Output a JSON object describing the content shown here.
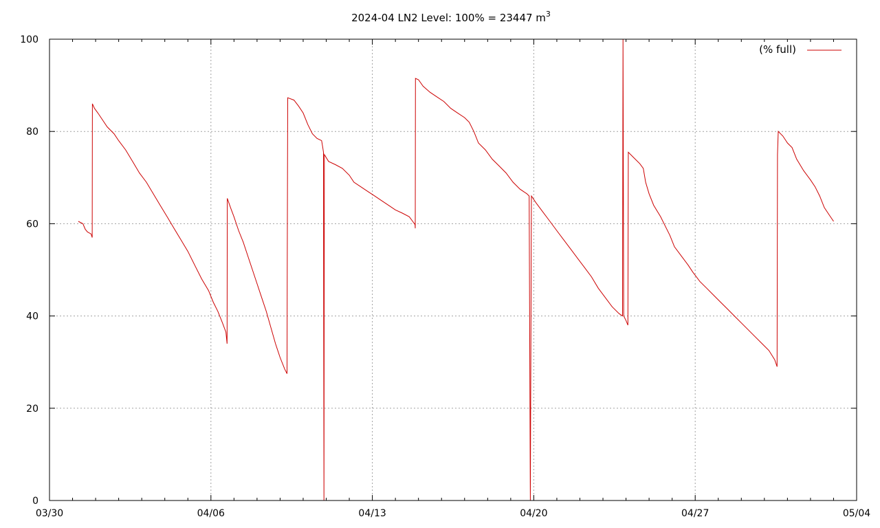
{
  "chart_data": {
    "type": "line",
    "title": "2024-04 LN2 Level: 100% = 23447 m",
    "title_superscript": "3",
    "xlabel": "",
    "ylabel": "",
    "x_unit": "day",
    "xlim": [
      0,
      35
    ],
    "ylim": [
      0,
      100
    ],
    "x_ticks": [
      {
        "value": 0,
        "label": "03/30"
      },
      {
        "value": 7,
        "label": "04/06"
      },
      {
        "value": 14,
        "label": "04/13"
      },
      {
        "value": 21,
        "label": "04/20"
      },
      {
        "value": 28,
        "label": "04/27"
      },
      {
        "value": 35,
        "label": "05/04"
      }
    ],
    "y_ticks": [
      {
        "value": 0,
        "label": "0"
      },
      {
        "value": 20,
        "label": "20"
      },
      {
        "value": 40,
        "label": "40"
      },
      {
        "value": 60,
        "label": "60"
      },
      {
        "value": 80,
        "label": "80"
      },
      {
        "value": 100,
        "label": "100"
      }
    ],
    "grid": true,
    "legend_position": "top-right",
    "color": "#cc0000",
    "series": [
      {
        "name": "(% full)",
        "points": [
          [
            1.25,
            60.5
          ],
          [
            1.45,
            60.0
          ],
          [
            1.55,
            58.8
          ],
          [
            1.65,
            58.2
          ],
          [
            1.8,
            57.8
          ],
          [
            1.85,
            57.0
          ],
          [
            1.86,
            86.0
          ],
          [
            1.95,
            85.0
          ],
          [
            2.1,
            84.0
          ],
          [
            2.3,
            82.5
          ],
          [
            2.5,
            81.0
          ],
          [
            2.8,
            79.5
          ],
          [
            3.0,
            78.0
          ],
          [
            3.3,
            76.0
          ],
          [
            3.6,
            73.5
          ],
          [
            3.9,
            71.0
          ],
          [
            4.2,
            69.0
          ],
          [
            4.5,
            66.5
          ],
          [
            4.8,
            64.0
          ],
          [
            5.1,
            61.5
          ],
          [
            5.4,
            59.0
          ],
          [
            5.7,
            56.5
          ],
          [
            6.0,
            54.0
          ],
          [
            6.3,
            51.0
          ],
          [
            6.6,
            48.0
          ],
          [
            6.9,
            45.5
          ],
          [
            7.1,
            43.0
          ],
          [
            7.3,
            41.0
          ],
          [
            7.5,
            38.5
          ],
          [
            7.65,
            36.5
          ],
          [
            7.7,
            34.0
          ],
          [
            7.71,
            65.5
          ],
          [
            7.85,
            63.5
          ],
          [
            8.0,
            61.5
          ],
          [
            8.2,
            58.5
          ],
          [
            8.4,
            56.0
          ],
          [
            8.6,
            53.0
          ],
          [
            8.8,
            50.0
          ],
          [
            9.0,
            47.0
          ],
          [
            9.2,
            44.0
          ],
          [
            9.4,
            41.0
          ],
          [
            9.6,
            37.5
          ],
          [
            9.8,
            34.0
          ],
          [
            10.0,
            31.0
          ],
          [
            10.2,
            28.5
          ],
          [
            10.3,
            27.5
          ],
          [
            10.31,
            49.5
          ],
          [
            10.33,
            87.3
          ],
          [
            10.6,
            86.8
          ],
          [
            10.8,
            85.5
          ],
          [
            11.0,
            84.0
          ],
          [
            11.2,
            81.5
          ],
          [
            11.4,
            79.5
          ],
          [
            11.6,
            78.5
          ],
          [
            11.8,
            78.0
          ],
          [
            11.85,
            76.5
          ],
          [
            11.88,
            75.5
          ],
          [
            11.9,
            0
          ],
          [
            11.92,
            75.0
          ],
          [
            12.1,
            73.5
          ],
          [
            12.4,
            72.8
          ],
          [
            12.7,
            72.0
          ],
          [
            13.0,
            70.5
          ],
          [
            13.2,
            69.0
          ],
          [
            13.5,
            68.0
          ],
          [
            13.8,
            67.0
          ],
          [
            14.1,
            66.0
          ],
          [
            14.4,
            65.0
          ],
          [
            14.7,
            64.0
          ],
          [
            15.0,
            63.0
          ],
          [
            15.3,
            62.3
          ],
          [
            15.6,
            61.5
          ],
          [
            15.75,
            60.5
          ],
          [
            15.85,
            59.8
          ],
          [
            15.86,
            59.0
          ],
          [
            15.87,
            91.5
          ],
          [
            16.0,
            91.2
          ],
          [
            16.2,
            89.8
          ],
          [
            16.5,
            88.5
          ],
          [
            16.8,
            87.5
          ],
          [
            17.1,
            86.5
          ],
          [
            17.4,
            85.0
          ],
          [
            17.7,
            84.0
          ],
          [
            18.0,
            83.0
          ],
          [
            18.2,
            82.0
          ],
          [
            18.4,
            80.0
          ],
          [
            18.6,
            77.5
          ],
          [
            18.9,
            76.0
          ],
          [
            19.2,
            74.0
          ],
          [
            19.5,
            72.5
          ],
          [
            19.8,
            71.0
          ],
          [
            20.1,
            69.0
          ],
          [
            20.4,
            67.5
          ],
          [
            20.7,
            66.5
          ],
          [
            20.8,
            66.0
          ],
          [
            20.85,
            0
          ],
          [
            20.9,
            66.0
          ],
          [
            21.1,
            64.5
          ],
          [
            21.4,
            62.5
          ],
          [
            21.7,
            60.5
          ],
          [
            22.0,
            58.5
          ],
          [
            22.3,
            56.5
          ],
          [
            22.6,
            54.5
          ],
          [
            22.9,
            52.5
          ],
          [
            23.2,
            50.5
          ],
          [
            23.5,
            48.5
          ],
          [
            23.8,
            46.0
          ],
          [
            24.1,
            44.0
          ],
          [
            24.4,
            42.0
          ],
          [
            24.7,
            40.5
          ],
          [
            24.85,
            40.0
          ],
          [
            24.87,
            100
          ],
          [
            24.9,
            40.0
          ],
          [
            25.0,
            39.0
          ],
          [
            25.08,
            38.0
          ],
          [
            25.1,
            75.5
          ],
          [
            25.3,
            74.5
          ],
          [
            25.6,
            73.0
          ],
          [
            25.75,
            72.0
          ],
          [
            25.85,
            69.0
          ],
          [
            26.0,
            66.5
          ],
          [
            26.2,
            64.0
          ],
          [
            26.5,
            61.5
          ],
          [
            26.7,
            59.5
          ],
          [
            26.9,
            57.5
          ],
          [
            27.1,
            55.0
          ],
          [
            27.4,
            53.0
          ],
          [
            27.7,
            51.0
          ],
          [
            27.9,
            49.5
          ],
          [
            28.2,
            47.5
          ],
          [
            28.5,
            46.0
          ],
          [
            28.8,
            44.5
          ],
          [
            29.1,
            43.0
          ],
          [
            29.4,
            41.5
          ],
          [
            29.7,
            40.0
          ],
          [
            30.0,
            38.5
          ],
          [
            30.3,
            37.0
          ],
          [
            30.6,
            35.5
          ],
          [
            30.9,
            34.0
          ],
          [
            31.2,
            32.5
          ],
          [
            31.45,
            30.5
          ],
          [
            31.55,
            29.0
          ],
          [
            31.57,
            75.0
          ],
          [
            31.6,
            80.0
          ],
          [
            31.8,
            79.0
          ],
          [
            32.0,
            77.5
          ],
          [
            32.2,
            76.5
          ],
          [
            32.4,
            74.0
          ],
          [
            32.7,
            71.5
          ],
          [
            33.0,
            69.5
          ],
          [
            33.2,
            68.0
          ],
          [
            33.4,
            66.0
          ],
          [
            33.6,
            63.5
          ],
          [
            33.8,
            62.0
          ],
          [
            34.0,
            60.5
          ]
        ]
      }
    ]
  }
}
